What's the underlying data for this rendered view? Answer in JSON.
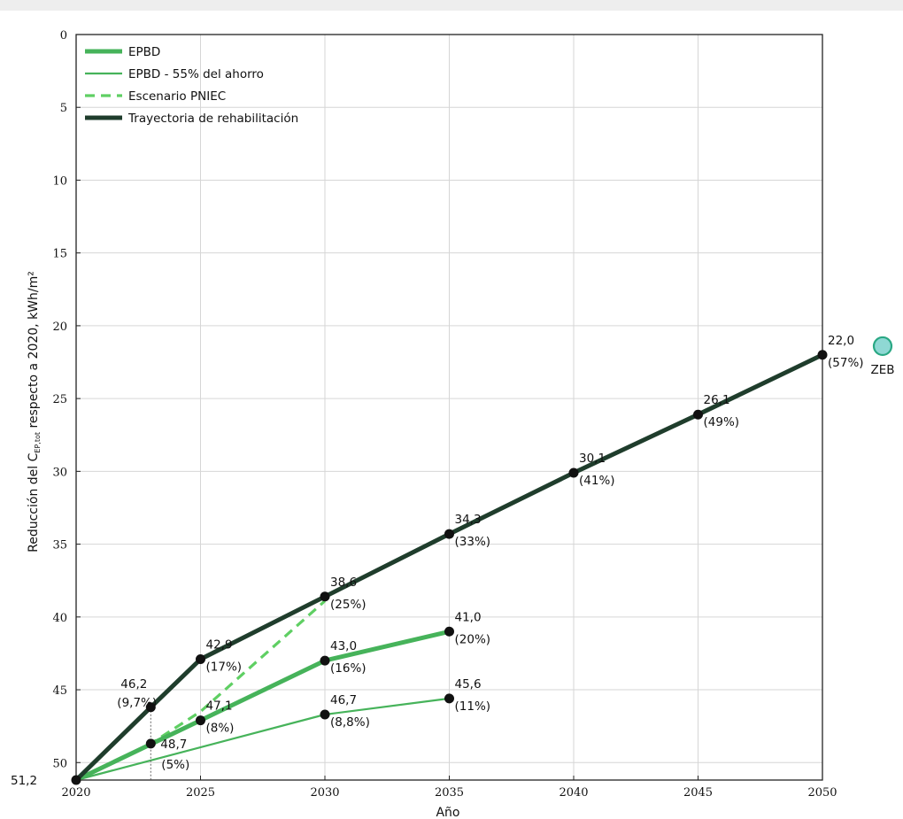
{
  "chart_data": {
    "type": "line",
    "xlabel": "Año",
    "ylabel_main": "Reducción del C",
    "ylabel_sub": "EP,tot",
    "ylabel_rest": " respecto a 2020, kWh/m²",
    "xlim": [
      2020,
      2050
    ],
    "ylim": [
      0,
      51.2
    ],
    "y_inverted": true,
    "grid": true,
    "legend_position": "top-left",
    "x_ticks": [
      "2020",
      "2025",
      "2030",
      "2035",
      "2040",
      "2045",
      "2050"
    ],
    "y_ticks": [
      "0",
      "5",
      "10",
      "15",
      "20",
      "25",
      "30",
      "35",
      "40",
      "45",
      "50"
    ],
    "y_start_label": "51,2",
    "series": [
      {
        "name": "EPBD",
        "color": "#46b35a",
        "style": "thick",
        "x": [
          2020,
          2025,
          2030,
          2035
        ],
        "y": [
          51.2,
          47.1,
          43.0,
          41.0
        ]
      },
      {
        "name": "EPBD - 55% del ahorro",
        "color": "#46b35a",
        "style": "thin",
        "x": [
          2020,
          2030,
          2035
        ],
        "y": [
          51.2,
          46.7,
          45.6
        ]
      },
      {
        "name": "Escenario PNIEC",
        "color": "#5fcf63",
        "style": "dashed",
        "x": [
          2020,
          2023,
          2025,
          2030
        ],
        "y": [
          51.2,
          48.7,
          46.5,
          38.9
        ]
      },
      {
        "name": "Trayectoria de rehabilitación",
        "color": "#1f3d2c",
        "style": "thick",
        "x": [
          2020,
          2023,
          2025,
          2030,
          2035,
          2040,
          2045,
          2050
        ],
        "y": [
          51.2,
          46.2,
          42.9,
          38.6,
          34.3,
          30.1,
          26.1,
          22.0
        ]
      }
    ],
    "markers": [
      {
        "x": 2023,
        "y": 46.2,
        "value": "46,2",
        "pct": "(9,7%)",
        "pos": "upper"
      },
      {
        "x": 2025,
        "y": 42.9,
        "value": "42,9",
        "pct": "(17%)",
        "pos": "right"
      },
      {
        "x": 2030,
        "y": 38.6,
        "value": "38,6",
        "pct": "(25%)",
        "pos": "right"
      },
      {
        "x": 2035,
        "y": 34.3,
        "value": "34,3",
        "pct": "(33%)",
        "pos": "right"
      },
      {
        "x": 2040,
        "y": 30.1,
        "value": "30,1",
        "pct": "(41%)",
        "pos": "right"
      },
      {
        "x": 2045,
        "y": 26.1,
        "value": "26,1",
        "pct": "(49%)",
        "pos": "right"
      },
      {
        "x": 2050,
        "y": 22.0,
        "value": "22,0",
        "pct": "(57%)",
        "pos": "right"
      },
      {
        "x": 2025,
        "y": 47.1,
        "value": "47,1",
        "pct": "(8%)",
        "pos": "right"
      },
      {
        "x": 2030,
        "y": 43.0,
        "value": "43,0",
        "pct": "(16%)",
        "pos": "right"
      },
      {
        "x": 2035,
        "y": 41.0,
        "value": "41,0",
        "pct": "(20%)",
        "pos": "right"
      },
      {
        "x": 2030,
        "y": 46.7,
        "value": "46,7",
        "pct": "(8,8%)",
        "pos": "right"
      },
      {
        "x": 2035,
        "y": 45.6,
        "value": "45,6",
        "pct": "(11%)",
        "pos": "right"
      },
      {
        "x": 2023,
        "y": 48.7,
        "value": "48,7",
        "pct": "(5%)",
        "pos": "right"
      }
    ],
    "origin_marker": {
      "x": 2020,
      "y": 51.2
    },
    "zeb": {
      "label": "ZEB",
      "y": 21.4,
      "color": "#8fd8d4"
    }
  }
}
